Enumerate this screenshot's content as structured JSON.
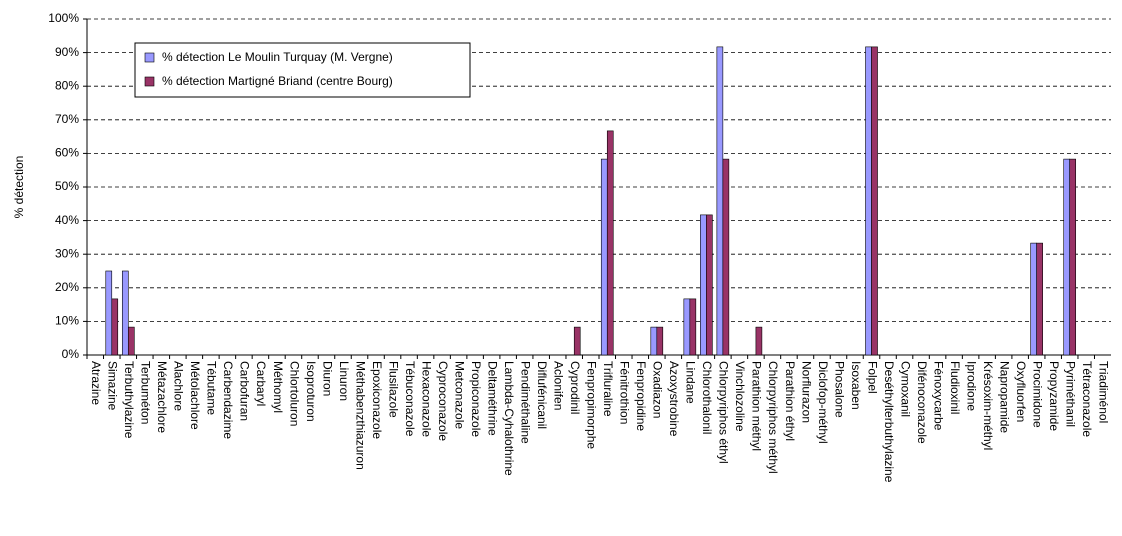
{
  "chart_data": {
    "type": "bar",
    "y_label": "% détection",
    "categories": [
      "Atrazine",
      "Simazine",
      "Terbuthylazine",
      "Terbuméton",
      "Métazachlore",
      "Alachlore",
      "Métolachlore",
      "Tébutame",
      "Carbendazime",
      "Carbofuran",
      "Carbaryl",
      "Méthomyl",
      "Chlortoluron",
      "Isoproturon",
      "Diuron",
      "Linuron",
      "Méthabenzthiazuron",
      "Epoxiconazole",
      "Flusilazole",
      "Tébuconazole",
      "Hexaconazole",
      "Cyproconazole",
      "Metconazole",
      "Propiconazole",
      "Deltaméthrine",
      "Lambda-Cyhalothrine",
      "Pendiméthaline",
      "Diflufénicanil",
      "Aclonifen",
      "Cyprodinil",
      "Fenpropimorphe",
      "Trifluraline",
      "Fénitrothion",
      "Fenpropidine",
      "Oxadiazon",
      "Azoxystrobine",
      "Lindane",
      "Chlorothalonil",
      "Chlorpyriphos éthyl",
      "Vinchlozoline",
      "Parathion méthyl",
      "Chlorpyriphos méthyl",
      "Parathion éthyl",
      "Norflurazon",
      "Diclofop-méthyl",
      "Phosalone",
      "Isoxaben",
      "Folpel",
      "Deséthylterbuthylazine",
      "Cymoxanil",
      "Difénoconazole",
      "Fénoxycarbe",
      "Fludioxinil",
      "Iprodione",
      "Krésoxim-méthyl",
      "Napropamide",
      "Oxyfluorfen",
      "Procimidone",
      "Propyzamide",
      "Pyriméthanil",
      "Tétraconazole",
      "Triadiménol"
    ],
    "series": [
      {
        "name": "% détection Le Moulin Turquay (M. Vergne)",
        "color": "#9999ff",
        "values": [
          0,
          25,
          25,
          0,
          0,
          0,
          0,
          0,
          0,
          0,
          0,
          0,
          0,
          0,
          0,
          0,
          0,
          0,
          0,
          0,
          0,
          0,
          0,
          0,
          0,
          0,
          0,
          0,
          0,
          0,
          0,
          58.3,
          0,
          0,
          8.3,
          0,
          16.7,
          41.7,
          91.7,
          0,
          0,
          0,
          0,
          0,
          0,
          0,
          0,
          91.7,
          0,
          0,
          0,
          0,
          0,
          0,
          0,
          0,
          0,
          33.3,
          0,
          58.3,
          0,
          0
        ]
      },
      {
        "name": "% détection Martigné Briand (centre Bourg)",
        "color": "#993366",
        "values": [
          0,
          16.7,
          8.3,
          0,
          0,
          0,
          0,
          0,
          0,
          0,
          0,
          0,
          0,
          0,
          0,
          0,
          0,
          0,
          0,
          0,
          0,
          0,
          0,
          0,
          0,
          0,
          0,
          0,
          0,
          8.3,
          0,
          66.7,
          0,
          0,
          8.3,
          0,
          16.7,
          41.7,
          58.3,
          0,
          8.3,
          0,
          0,
          0,
          0,
          0,
          0,
          91.7,
          0,
          0,
          0,
          0,
          0,
          0,
          0,
          0,
          0,
          33.3,
          0,
          58.3,
          0,
          0
        ]
      }
    ],
    "ylim": [
      0,
      100
    ],
    "yticks": [
      {
        "value": 0,
        "label": "0%"
      },
      {
        "value": 10,
        "label": "10%"
      },
      {
        "value": 20,
        "label": "20%"
      },
      {
        "value": 30,
        "label": "30%"
      },
      {
        "value": 40,
        "label": "40%"
      },
      {
        "value": 50,
        "label": "50%"
      },
      {
        "value": 60,
        "label": "60%"
      },
      {
        "value": 70,
        "label": "70%"
      },
      {
        "value": 80,
        "label": "80%"
      },
      {
        "value": 90,
        "label": "90%"
      },
      {
        "value": 100,
        "label": "100%"
      }
    ],
    "grid": true,
    "legend": "top-left"
  }
}
